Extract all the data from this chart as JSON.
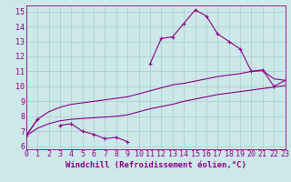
{
  "x": [
    0,
    1,
    2,
    3,
    4,
    5,
    6,
    7,
    8,
    9,
    10,
    11,
    12,
    13,
    14,
    15,
    16,
    17,
    18,
    19,
    20,
    21,
    22,
    23
  ],
  "line1_y": [
    6.7,
    7.8,
    null,
    7.4,
    7.5,
    7.0,
    6.8,
    6.5,
    6.6,
    6.3,
    null,
    11.5,
    13.2,
    13.3,
    14.2,
    15.1,
    14.7,
    13.5,
    13.0,
    12.5,
    11.0,
    11.1,
    10.0,
    10.4
  ],
  "line2_y": [
    6.7,
    7.8,
    8.3,
    8.6,
    8.8,
    8.9,
    9.0,
    9.1,
    9.2,
    9.3,
    9.5,
    9.7,
    9.9,
    10.1,
    10.2,
    10.35,
    10.5,
    10.65,
    10.75,
    10.85,
    11.0,
    11.05,
    10.5,
    10.4
  ],
  "line3_y": [
    6.7,
    7.2,
    7.5,
    7.7,
    7.8,
    7.85,
    7.9,
    7.95,
    8.0,
    8.1,
    8.3,
    8.5,
    8.65,
    8.8,
    9.0,
    9.15,
    9.3,
    9.45,
    9.55,
    9.65,
    9.75,
    9.85,
    9.95,
    10.05
  ],
  "line_color": "#8b008b",
  "bg_color": "#cce8e8",
  "grid_color": "#aacccc",
  "xlabel": "Windchill (Refroidissement éolien,°C)",
  "xlim": [
    0,
    23
  ],
  "ylim": [
    5.8,
    15.4
  ],
  "xticks": [
    0,
    1,
    2,
    3,
    4,
    5,
    6,
    7,
    8,
    9,
    10,
    11,
    12,
    13,
    14,
    15,
    16,
    17,
    18,
    19,
    20,
    21,
    22,
    23
  ],
  "yticks": [
    6,
    7,
    8,
    9,
    10,
    11,
    12,
    13,
    14,
    15
  ],
  "xlabel_fontsize": 6.5,
  "tick_fontsize": 6.0
}
